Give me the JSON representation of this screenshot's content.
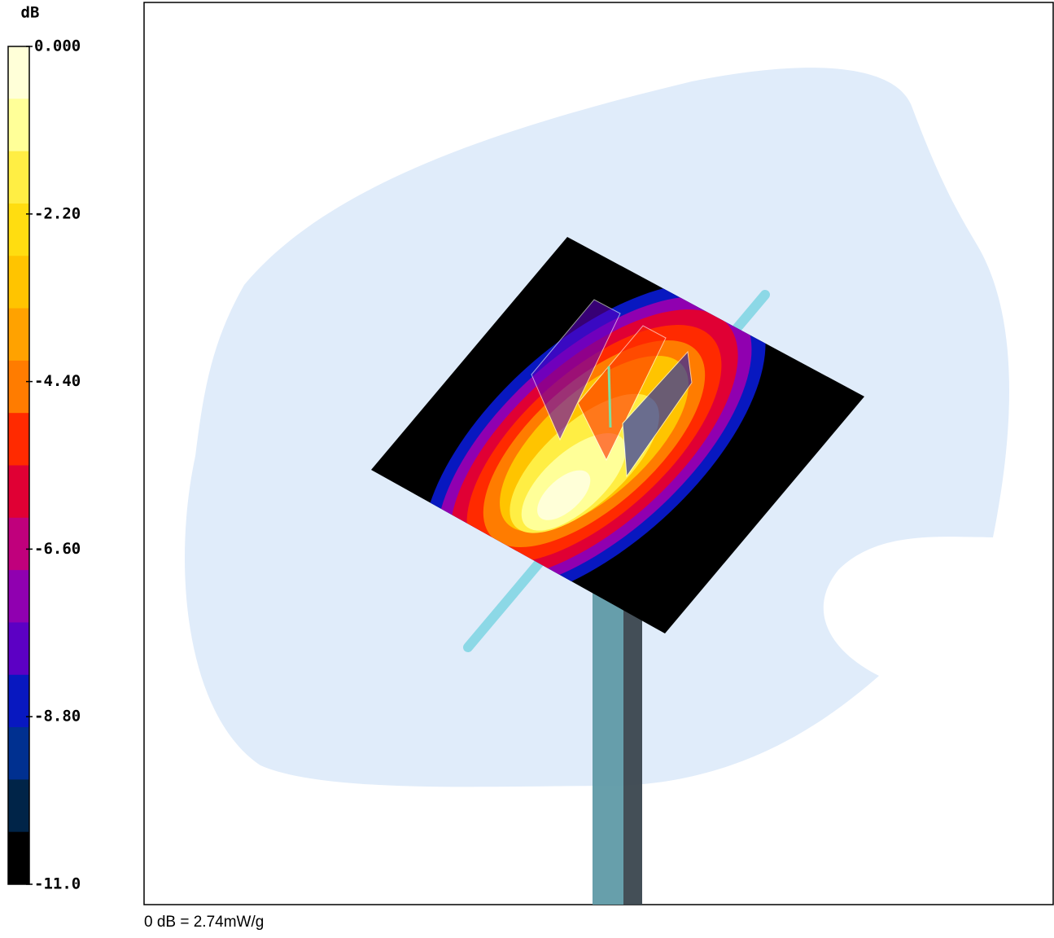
{
  "chart_data": {
    "type": "colorbar",
    "colorbar_title": "dB",
    "lim": [
      -11,
      0
    ],
    "ticks": [
      {
        "value": 0,
        "label": "0.000"
      },
      {
        "value": -2.2,
        "label": "-2.20"
      },
      {
        "value": -4.4,
        "label": "-4.40"
      },
      {
        "value": -6.6,
        "label": "-6.60"
      },
      {
        "value": -8.8,
        "label": "-8.80"
      },
      {
        "value": -11,
        "label": "-11.0"
      }
    ],
    "colors": [
      "#ffffd8",
      "#ffff98",
      "#ffee44",
      "#ffdd10",
      "#ffc400",
      "#ffa200",
      "#ff7c00",
      "#ff2a00",
      "#e00034",
      "#c0007c",
      "#9000b0",
      "#5c00c4",
      "#0818c0",
      "#003090",
      "#002448",
      "#000000"
    ],
    "note": "0 dB = 2.74mW/g"
  }
}
